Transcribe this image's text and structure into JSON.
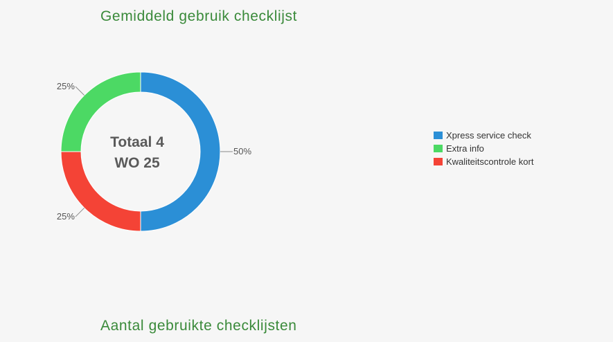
{
  "titles": {
    "top": "Gemiddeld gebruik checklijst",
    "bottom": "Aantal gebruikte checklijsten"
  },
  "chart_data": {
    "type": "pie",
    "donut": true,
    "center_text": [
      "Totaal 4",
      "WO 25"
    ],
    "slices": [
      {
        "label": "Xpress service check",
        "value": 2,
        "percent_label": "50%",
        "color": "#2b8fd6"
      },
      {
        "label": "Kwaliteitscontrole kort",
        "value": 1,
        "percent_label": "25%",
        "color": "#f44336"
      },
      {
        "label": "Extra info",
        "value": 1,
        "percent_label": "25%",
        "color": "#4cd964"
      }
    ],
    "legend": {
      "placement": "right",
      "entries": [
        {
          "label": "Xpress service check",
          "color": "#2b8fd6"
        },
        {
          "label": "Extra info",
          "color": "#4cd964"
        },
        {
          "label": "Kwaliteitscontrole kort",
          "color": "#f44336"
        }
      ]
    }
  }
}
